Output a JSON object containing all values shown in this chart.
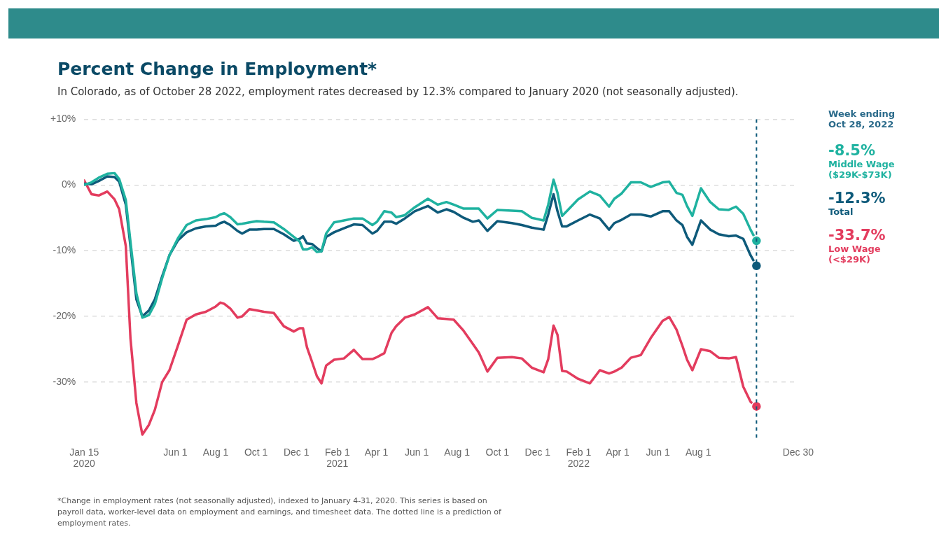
{
  "chart_data": {
    "type": "line",
    "title": "Percent Change in Employment*",
    "subtitle": "In Colorado, as of October 28 2022, employment rates decreased by 12.3% compared to January 2020 (not seasonally adjusted).",
    "x": [
      "2020-01-15",
      "2020-01-26",
      "2020-02-06",
      "2020-02-19",
      "2020-03-01",
      "2020-03-08",
      "2020-03-18",
      "2020-03-25",
      "2020-04-03",
      "2020-04-12",
      "2020-04-22",
      "2020-05-01",
      "2020-05-12",
      "2020-05-23",
      "2020-06-05",
      "2020-06-18",
      "2020-07-02",
      "2020-07-17",
      "2020-08-01",
      "2020-08-08",
      "2020-08-14",
      "2020-08-23",
      "2020-09-03",
      "2020-09-10",
      "2020-09-21",
      "2020-10-02",
      "2020-10-13",
      "2020-10-28",
      "2020-11-12",
      "2020-11-27",
      "2020-12-06",
      "2020-12-11",
      "2020-12-17",
      "2020-12-25",
      "2021-01-01",
      "2021-01-08",
      "2021-01-15",
      "2021-01-27",
      "2021-02-11",
      "2021-02-26",
      "2021-03-11",
      "2021-03-26",
      "2021-04-02",
      "2021-04-13",
      "2021-04-24",
      "2021-05-01",
      "2021-05-14",
      "2021-05-29",
      "2021-06-18",
      "2021-07-03",
      "2021-07-16",
      "2021-07-27",
      "2021-08-11",
      "2021-08-25",
      "2021-09-03",
      "2021-09-16",
      "2021-10-01",
      "2021-10-23",
      "2021-11-07",
      "2021-11-22",
      "2021-12-10",
      "2021-12-17",
      "2021-12-25",
      "2021-12-31",
      "2022-01-07",
      "2022-01-14",
      "2022-01-31",
      "2022-02-18",
      "2022-03-05",
      "2022-03-19",
      "2022-03-27",
      "2022-04-07",
      "2022-04-21",
      "2022-05-06",
      "2022-05-21",
      "2022-06-08",
      "2022-06-18",
      "2022-06-29",
      "2022-07-08",
      "2022-07-15",
      "2022-07-23",
      "2022-08-05",
      "2022-08-19",
      "2022-09-01",
      "2022-09-16",
      "2022-09-27",
      "2022-10-08",
      "2022-10-19",
      "2022-10-28"
    ],
    "series": [
      {
        "name": "Middle Wage ($29K-$73K)",
        "color": "#1fb2a0",
        "values": [
          0,
          0.4,
          1.1,
          1.7,
          1.8,
          0.9,
          -2.3,
          -8.6,
          -16.5,
          -20.2,
          -19.8,
          -18.1,
          -14.2,
          -10.7,
          -8.1,
          -6.1,
          -5.4,
          -5.2,
          -4.9,
          -4.5,
          -4.3,
          -4.9,
          -6,
          -5.9,
          -5.7,
          -5.5,
          -5.6,
          -5.7,
          -6.7,
          -7.9,
          -8.6,
          -9.8,
          -9.8,
          -9.5,
          -10.2,
          -10.1,
          -7.4,
          -5.7,
          -5.4,
          -5.1,
          -5.1,
          -6.1,
          -5.6,
          -4,
          -4.2,
          -4.9,
          -4.6,
          -3.4,
          -2.1,
          -3,
          -2.6,
          -3,
          -3.6,
          -3.6,
          -3.6,
          -5.1,
          -3.8,
          -3.9,
          -4,
          -5,
          -5.4,
          -3,
          0.8,
          -1.2,
          -4.7,
          -4,
          -2.2,
          -1,
          -1.6,
          -3.3,
          -2.1,
          -1.3,
          0.4,
          0.4,
          -0.3,
          0.4,
          0.5,
          -1.2,
          -1.5,
          -3.2,
          -4.7,
          -0.5,
          -2.6,
          -3.7,
          -3.8,
          -3.3,
          -4.4,
          -6.8,
          -8.5
        ]
      },
      {
        "name": "Total",
        "color": "#0e5a7a",
        "values": [
          0.2,
          0.1,
          0.6,
          1.3,
          1.2,
          0.5,
          -3,
          -9.3,
          -17.4,
          -20,
          -19.1,
          -17.4,
          -13.9,
          -10.7,
          -8.4,
          -7.2,
          -6.6,
          -6.3,
          -6.2,
          -5.8,
          -5.6,
          -6.1,
          -7,
          -7.4,
          -6.8,
          -6.8,
          -6.7,
          -6.7,
          -7.5,
          -8.5,
          -8.2,
          -7.8,
          -8.9,
          -9,
          -9.6,
          -10.1,
          -7.9,
          -7.2,
          -6.6,
          -6,
          -6.1,
          -7.4,
          -7,
          -5.6,
          -5.6,
          -5.9,
          -5.1,
          -4,
          -3.2,
          -4.2,
          -3.7,
          -4.1,
          -5,
          -5.6,
          -5.4,
          -7,
          -5.5,
          -5.8,
          -6.1,
          -6.5,
          -6.8,
          -4.5,
          -1.4,
          -4,
          -6.3,
          -6.3,
          -5.4,
          -4.5,
          -5.1,
          -6.8,
          -5.8,
          -5.3,
          -4.5,
          -4.5,
          -4.8,
          -4,
          -4,
          -5.4,
          -6.1,
          -7.9,
          -9.1,
          -5.4,
          -6.8,
          -7.5,
          -7.8,
          -7.7,
          -8.2,
          -10.7,
          -12.3
        ]
      },
      {
        "name": "Low Wage (<$29K)",
        "color": "#e33c5e",
        "values": [
          0.7,
          -1.4,
          -1.6,
          -1,
          -2.2,
          -3.7,
          -9.3,
          -23.3,
          -33.2,
          -38,
          -36.5,
          -34.2,
          -30,
          -28.2,
          -24.4,
          -20.5,
          -19.7,
          -19.3,
          -18.5,
          -17.9,
          -18.1,
          -18.8,
          -20.2,
          -20,
          -18.9,
          -19.1,
          -19.3,
          -19.5,
          -21.5,
          -22.3,
          -21.8,
          -21.8,
          -24.7,
          -27,
          -29.1,
          -30.2,
          -27.5,
          -26.6,
          -26.4,
          -25.1,
          -26.5,
          -26.5,
          -26.2,
          -25.6,
          -22.5,
          -21.5,
          -20.2,
          -19.7,
          -18.6,
          -20.3,
          -20.4,
          -20.5,
          -22.2,
          -24.2,
          -25.5,
          -28.4,
          -26.3,
          -26.2,
          -26.4,
          -27.8,
          -28.5,
          -26.5,
          -21.4,
          -22.8,
          -28.3,
          -28.4,
          -29.5,
          -30.2,
          -28.2,
          -28.7,
          -28.4,
          -27.8,
          -26.3,
          -25.9,
          -23.3,
          -20.7,
          -20.1,
          -22,
          -24.5,
          -26.6,
          -28.2,
          -25,
          -25.3,
          -26.3,
          -26.4,
          -26.2,
          -30.7,
          -33,
          -33.7
        ]
      }
    ],
    "xlim": [
      "2020-01-15",
      "2022-12-30"
    ],
    "xticks": [
      {
        "value": "2020-01-15",
        "label": "Jan 15\n2020"
      },
      {
        "value": "2020-06-01",
        "label": "Jun 1"
      },
      {
        "value": "2020-08-01",
        "label": "Aug 1"
      },
      {
        "value": "2020-10-01",
        "label": "Oct 1"
      },
      {
        "value": "2020-12-01",
        "label": "Dec 1"
      },
      {
        "value": "2021-02-01",
        "label": "Feb 1\n2021"
      },
      {
        "value": "2021-04-01",
        "label": "Apr 1"
      },
      {
        "value": "2021-06-01",
        "label": "Jun 1"
      },
      {
        "value": "2021-08-01",
        "label": "Aug 1"
      },
      {
        "value": "2021-10-01",
        "label": "Oct 1"
      },
      {
        "value": "2021-12-01",
        "label": "Dec 1"
      },
      {
        "value": "2022-02-01",
        "label": "Feb 1\n2022"
      },
      {
        "value": "2022-04-01",
        "label": "Apr 1"
      },
      {
        "value": "2022-06-01",
        "label": "Jun 1"
      },
      {
        "value": "2022-08-01",
        "label": "Aug 1"
      },
      {
        "value": "2022-12-30",
        "label": "Dec 30"
      }
    ],
    "ylim": [
      -39,
      10
    ],
    "yticks": [
      {
        "value": 10,
        "label": "+10%"
      },
      {
        "value": 0,
        "label": "0%"
      },
      {
        "value": -10,
        "label": "-10%"
      },
      {
        "value": -20,
        "label": "-20%"
      },
      {
        "value": -30,
        "label": "-30%"
      }
    ],
    "grid": "y",
    "legend": "right",
    "ref_lines": [
      {
        "axis": "x",
        "value": "2022-10-28",
        "label": "Week ending Oct 28, 2022",
        "color": "#0e5a7a",
        "line_style": "dashed"
      }
    ],
    "annotations": [
      "-8.5%",
      "-12.3%",
      "-33.7%",
      "*Change in employment rates (not seasonally adjusted), indexed to January 4-31, 2020. This series is based on payroll data, worker-level data on employment and earnings, and timesheet data. The dotted line is a prediction of employment rates."
    ]
  }
}
